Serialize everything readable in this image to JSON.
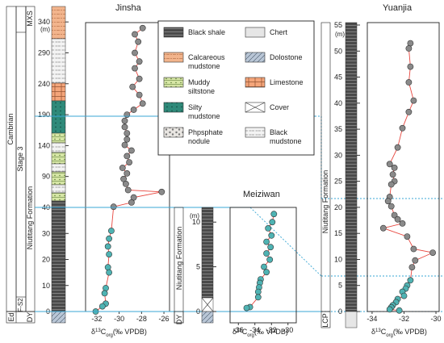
{
  "colors": {
    "grey_point": "#8a8a8a",
    "teal_point": "#4fb3b3",
    "connector": "#e8473f",
    "blue_line": "#3aa7d4",
    "black_shale": "#4a4a4a",
    "calc_mudstone": "#f2b48c",
    "muddy_siltstone": "#d6e6a5",
    "silty_mudstone": "#2f8a7a",
    "chert": "#e6e6e6",
    "dolostone": "#b9c6d6",
    "limestone": "#f4a57a"
  },
  "legend": {
    "items": [
      {
        "label": "Black shale",
        "icon": "black-shale-swatch"
      },
      {
        "label": "Chert",
        "icon": "chert-swatch"
      },
      {
        "label": "Calcareous",
        "label2": "mudstone",
        "icon": "calcareous-mudstone-swatch"
      },
      {
        "label": "Dolostone",
        "icon": "dolostone-swatch"
      },
      {
        "label": "Muddy",
        "label2": "siltstone",
        "icon": "muddy-siltstone-swatch"
      },
      {
        "label": "Limestone",
        "icon": "limestone-swatch"
      },
      {
        "label": "Silty",
        "label2": "mudstone",
        "icon": "silty-mudstone-swatch"
      },
      {
        "label": "Cover",
        "icon": "cover-swatch"
      },
      {
        "label": "Phpsphate",
        "label2": "nodule",
        "icon": "phosphate-nodule-swatch"
      },
      {
        "label": "Black",
        "label2": "mudstone",
        "icon": "black-mudstone-swatch"
      }
    ]
  },
  "strat": {
    "cambrian": "Cambrian",
    "stage3": "Stage 3",
    "formation": "Niutitang Formation",
    "mxs": "MXS",
    "f_s2": "F-S2",
    "ed": "Ed",
    "dy": "DY",
    "dy2": "DY",
    "lcp": "LCP",
    "m_unit": "(m)"
  },
  "chart_data": [
    {
      "type": "scatter",
      "title": "Jinsha",
      "xlabel": "δ13Corg(‰ VPDB)",
      "ylabel": "",
      "xlim": [
        -33,
        -25.5
      ],
      "ylim": [
        -5,
        335
      ],
      "xticks": [
        -32,
        -30,
        -28,
        -26
      ],
      "yticks": [
        0,
        10,
        20,
        30,
        40,
        90,
        140,
        190,
        240,
        290,
        340
      ],
      "y_break": "Linear 0–40 m, compressed scale above 40 m",
      "series": [
        {
          "color": "grey",
          "points": [
            [
              -27.9,
              330
            ],
            [
              -28.6,
              320
            ],
            [
              -28.3,
              308
            ],
            [
              -28.6,
              290
            ],
            [
              -28.2,
              276
            ],
            [
              -28.6,
              265
            ],
            [
              -28.2,
              248
            ],
            [
              -28.8,
              235
            ],
            [
              -28.2,
              222
            ],
            [
              -27.9,
              208
            ],
            [
              -28.7,
              198
            ],
            [
              -29.3,
              190
            ],
            [
              -29.5,
              180
            ],
            [
              -29.5,
              170
            ],
            [
              -29.3,
              160
            ],
            [
              -29.3,
              150
            ],
            [
              -29.5,
              141
            ],
            [
              -28.9,
              132
            ],
            [
              -29.3,
              123
            ],
            [
              -29.1,
              113
            ],
            [
              -29.7,
              104
            ],
            [
              -29.3,
              95
            ],
            [
              -29.6,
              86
            ],
            [
              -29.4,
              78
            ],
            [
              -29.2,
              68
            ],
            [
              -26.2,
              65
            ],
            [
              -28.7,
              56
            ],
            [
              -28.9,
              48
            ],
            [
              -30.5,
              41
            ]
          ]
        },
        {
          "color": "teal",
          "points": [
            [
              -30.7,
              31
            ],
            [
              -30.9,
              28
            ],
            [
              -31.0,
              25
            ],
            [
              -30.9,
              22
            ],
            [
              -31.0,
              17
            ],
            [
              -30.9,
              15
            ],
            [
              -31.2,
              9
            ],
            [
              -31.3,
              7
            ],
            [
              -31.2,
              3
            ],
            [
              -31.5,
              2
            ],
            [
              -32.1,
              0
            ]
          ]
        }
      ]
    },
    {
      "type": "scatter",
      "title": "Meiziwan",
      "xlabel": "δ13Corg(‰ VPDB)",
      "ylabel": "",
      "xlim": [
        -37,
        -29
      ],
      "ylim": [
        -2,
        11.5
      ],
      "xticks": [
        -36,
        -34,
        -32,
        -30
      ],
      "yticks": [
        0,
        5,
        10
      ],
      "series": [
        {
          "color": "teal",
          "points": [
            [
              -31.7,
              10.9
            ],
            [
              -31.9,
              10.0
            ],
            [
              -32.4,
              9.3
            ],
            [
              -32.0,
              8.5
            ],
            [
              -32.6,
              7.8
            ],
            [
              -32.1,
              7.2
            ],
            [
              -32.6,
              6.5
            ],
            [
              -32.2,
              5.8
            ],
            [
              -32.9,
              5.0
            ],
            [
              -32.6,
              4.4
            ],
            [
              -33.3,
              3.6
            ],
            [
              -33.4,
              3.2
            ],
            [
              -33.5,
              2.7
            ],
            [
              -33.6,
              2.2
            ],
            [
              -33.6,
              1.6
            ],
            [
              -34.6,
              0.5
            ],
            [
              -35.0,
              0.4
            ]
          ]
        }
      ]
    },
    {
      "type": "scatter",
      "title": "Yuanjia",
      "xlabel": "δ13Corg(‰ VPDB)",
      "ylabel": "",
      "xlim": [
        -34.3,
        -29.8
      ],
      "ylim": [
        0,
        55
      ],
      "xticks": [
        -34,
        -32,
        -30
      ],
      "yticks": [
        0,
        5,
        10,
        15,
        20,
        25,
        30,
        35,
        40,
        45,
        50,
        55
      ],
      "series": [
        {
          "color": "grey",
          "points": [
            [
              -31.6,
              51.5
            ],
            [
              -31.7,
              50.5
            ],
            [
              -31.6,
              47.0
            ],
            [
              -31.7,
              44.0
            ],
            [
              -31.4,
              40.5
            ],
            [
              -31.7,
              38.3
            ],
            [
              -32.1,
              35.2
            ],
            [
              -32.4,
              31.5
            ],
            [
              -32.9,
              28.3
            ],
            [
              -32.6,
              27.6
            ],
            [
              -32.7,
              26.3
            ],
            [
              -32.6,
              25.0
            ],
            [
              -32.8,
              24.4
            ],
            [
              -32.9,
              22.0
            ],
            [
              -33.0,
              21.2
            ],
            [
              -32.8,
              20.2
            ],
            [
              -32.6,
              18.5
            ],
            [
              -32.4,
              17.7
            ],
            [
              -33.3,
              16.0
            ],
            [
              -32.1,
              16.9
            ],
            [
              -31.8,
              14.4
            ],
            [
              -31.4,
              12.0
            ],
            [
              -30.2,
              11.3
            ],
            [
              -31.3,
              9.8
            ],
            [
              -31.5,
              8.5
            ]
          ]
        },
        {
          "color": "teal",
          "points": [
            [
              -31.6,
              6.0
            ],
            [
              -31.8,
              5.0
            ],
            [
              -31.9,
              4.4
            ],
            [
              -32.1,
              3.8
            ],
            [
              -32.0,
              3.0
            ],
            [
              -32.4,
              2.4
            ],
            [
              -32.5,
              1.8
            ],
            [
              -32.7,
              1.2
            ],
            [
              -32.8,
              0.8
            ],
            [
              -32.9,
              0.4
            ],
            [
              -32.3,
              0.2
            ]
          ]
        }
      ]
    }
  ]
}
